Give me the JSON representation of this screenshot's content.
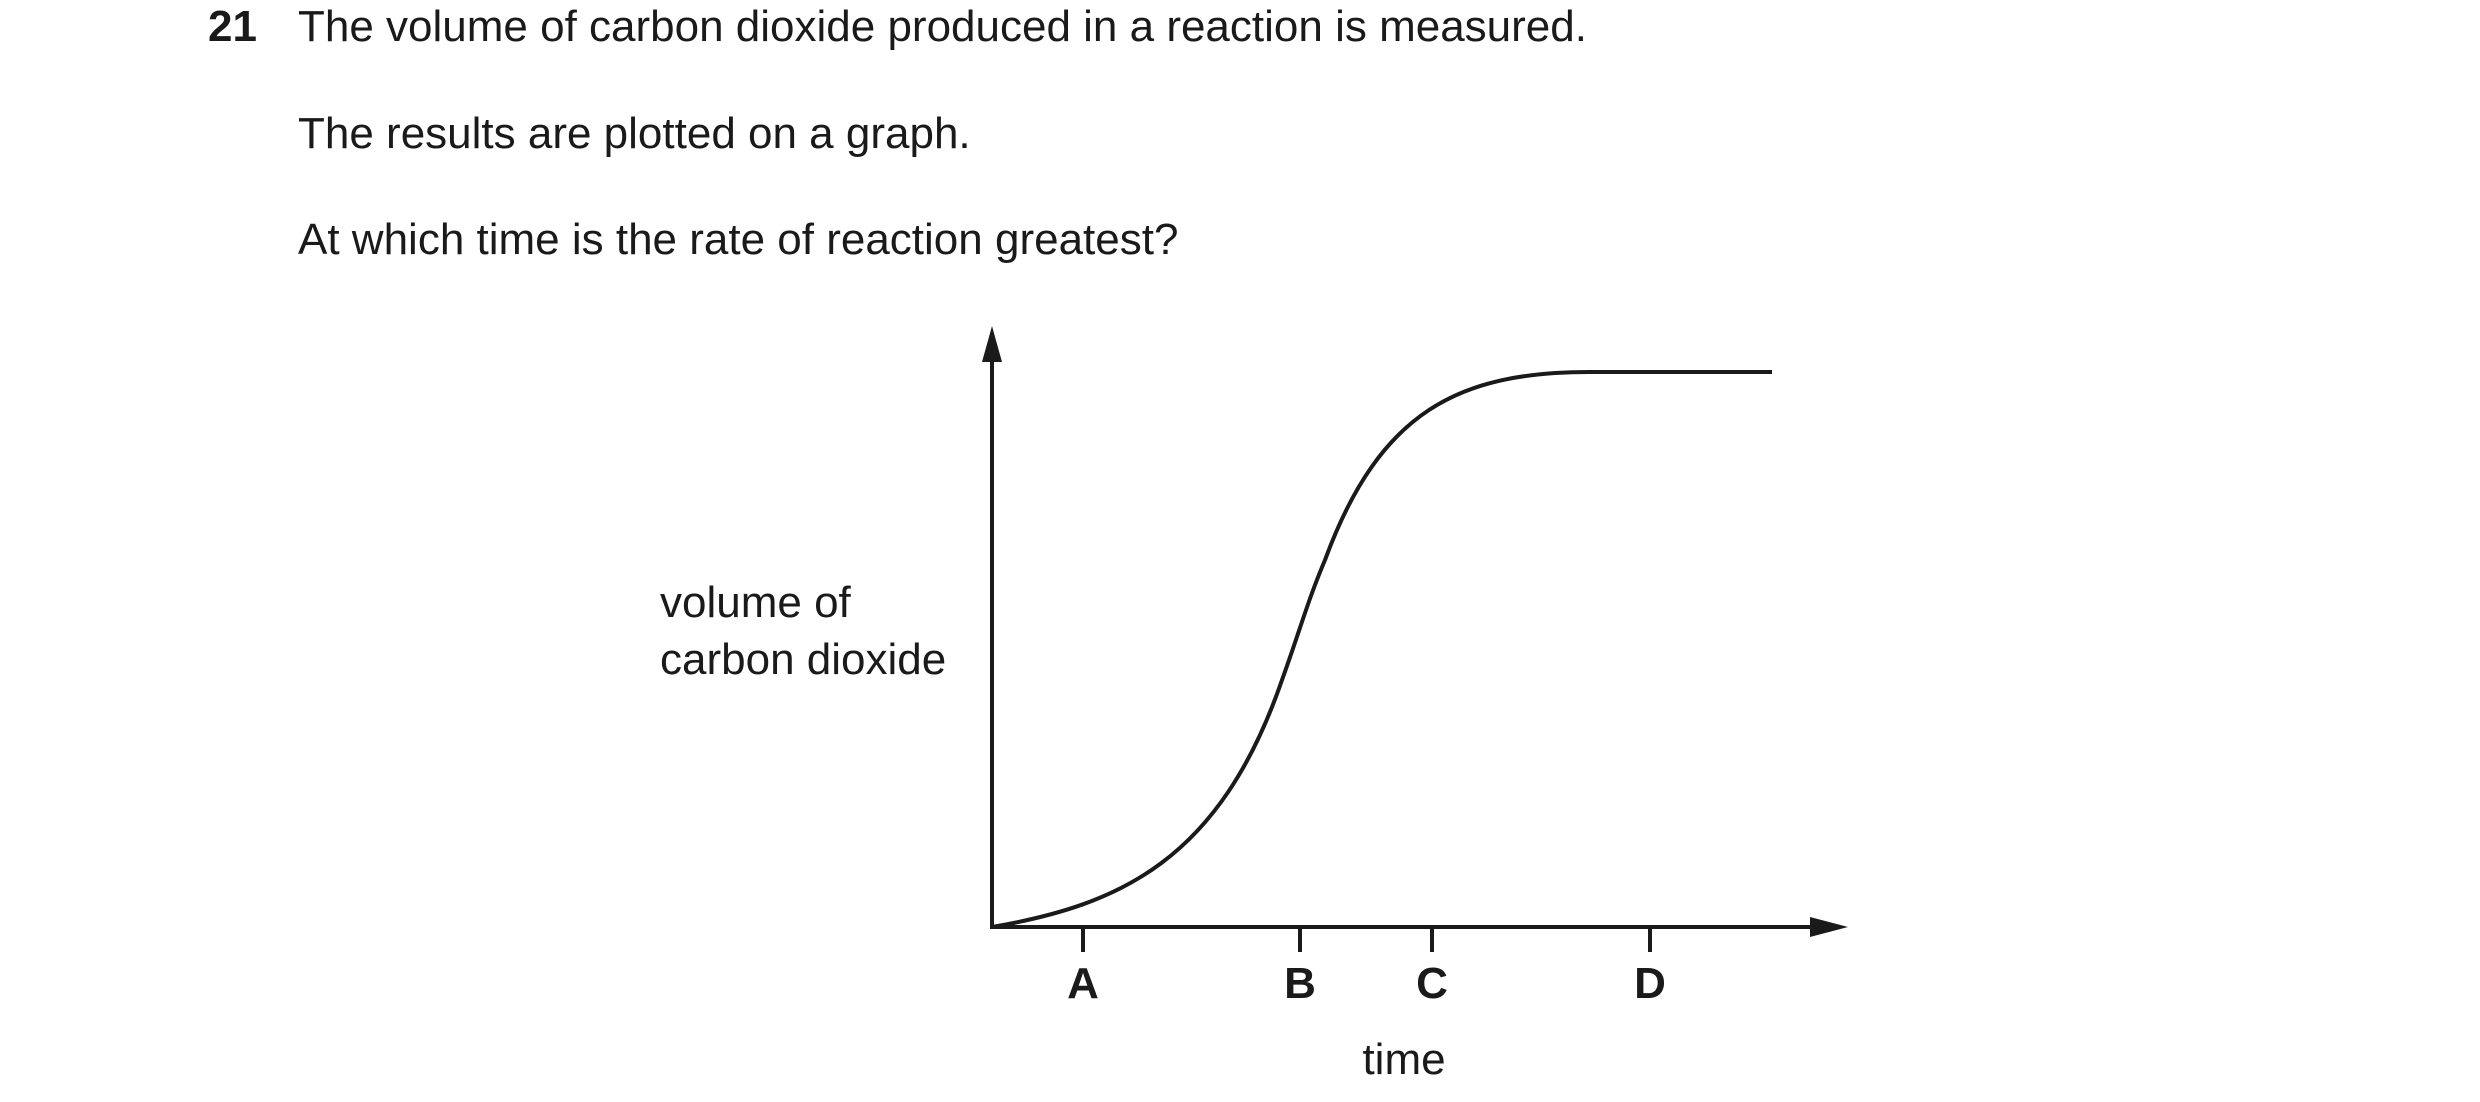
{
  "question": {
    "number": "21",
    "lines": [
      "The volume of carbon dioxide produced in a reaction is measured.",
      "The results are plotted on a graph.",
      "At which time is the rate of reaction greatest?"
    ]
  },
  "chart_data": {
    "type": "line",
    "ylabel_lines": [
      "volume of",
      "carbon dioxide"
    ],
    "xlabel": "time",
    "tick_labels": [
      "A",
      "B",
      "C",
      "D"
    ],
    "axis_ticks_numeric": false,
    "grid": false,
    "legend": "none",
    "curve_shape": "sigmoid rising from origin, steepest at B, levelling off to a plateau after D"
  },
  "colors": {
    "ink": "#1a1a1a",
    "background": "#ffffff"
  }
}
